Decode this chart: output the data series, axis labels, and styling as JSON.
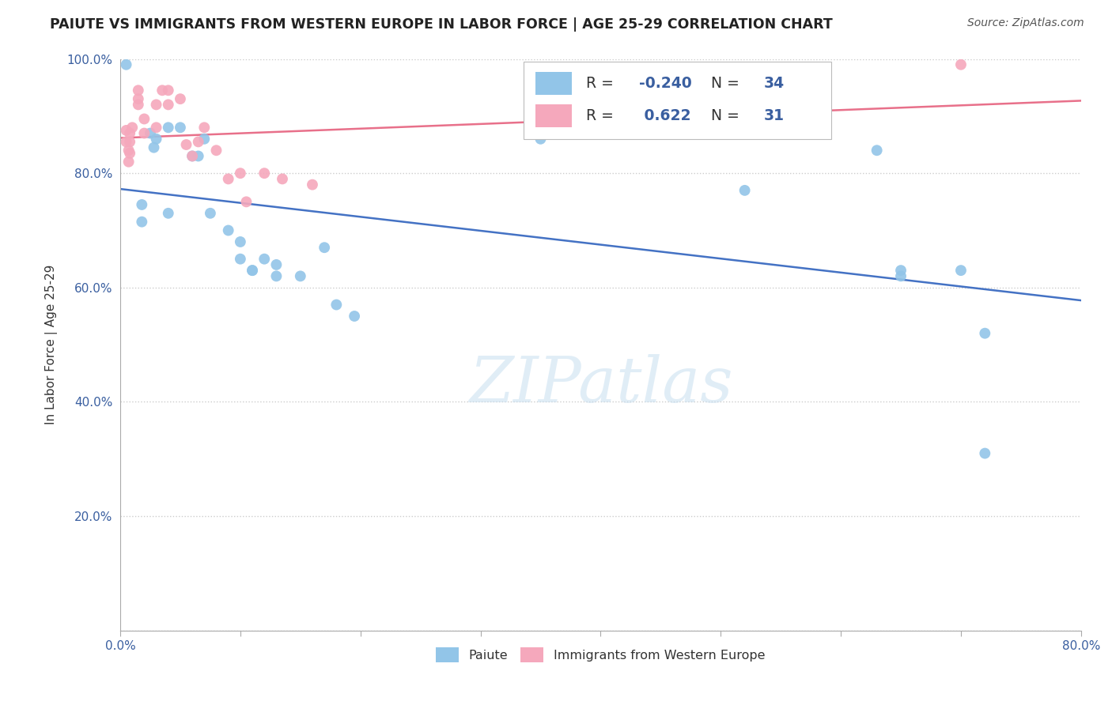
{
  "title": "PAIUTE VS IMMIGRANTS FROM WESTERN EUROPE IN LABOR FORCE | AGE 25-29 CORRELATION CHART",
  "source": "Source: ZipAtlas.com",
  "ylabel": "In Labor Force | Age 25-29",
  "xlim": [
    0.0,
    0.8
  ],
  "ylim": [
    0.0,
    1.0
  ],
  "xticks": [
    0.0,
    0.1,
    0.2,
    0.3,
    0.4,
    0.5,
    0.6,
    0.7,
    0.8
  ],
  "yticks": [
    0.0,
    0.2,
    0.4,
    0.6,
    0.8,
    1.0
  ],
  "xtick_labels_show": [
    "0.0%",
    "",
    "",
    "",
    "",
    "",
    "",
    "",
    "80.0%"
  ],
  "ytick_labels": [
    "",
    "20.0%",
    "40.0%",
    "60.0%",
    "80.0%",
    "100.0%"
  ],
  "blue_color": "#92C5E8",
  "pink_color": "#F5A8BC",
  "blue_line_color": "#4472C4",
  "pink_line_color": "#E8708A",
  "R_blue": -0.24,
  "N_blue": 34,
  "R_pink": 0.622,
  "N_pink": 31,
  "legend_label_blue": "Paiute",
  "legend_label_pink": "Immigrants from Western Europe",
  "watermark": "ZIPatlas",
  "blue_scatter": [
    [
      0.005,
      0.99
    ],
    [
      0.018,
      0.745
    ],
    [
      0.018,
      0.715
    ],
    [
      0.025,
      0.87
    ],
    [
      0.028,
      0.845
    ],
    [
      0.03,
      0.86
    ],
    [
      0.04,
      0.73
    ],
    [
      0.04,
      0.88
    ],
    [
      0.05,
      0.88
    ],
    [
      0.06,
      0.83
    ],
    [
      0.065,
      0.83
    ],
    [
      0.07,
      0.86
    ],
    [
      0.075,
      0.73
    ],
    [
      0.09,
      0.7
    ],
    [
      0.1,
      0.68
    ],
    [
      0.1,
      0.65
    ],
    [
      0.11,
      0.63
    ],
    [
      0.11,
      0.63
    ],
    [
      0.12,
      0.65
    ],
    [
      0.13,
      0.64
    ],
    [
      0.13,
      0.62
    ],
    [
      0.15,
      0.62
    ],
    [
      0.17,
      0.67
    ],
    [
      0.18,
      0.57
    ],
    [
      0.195,
      0.55
    ],
    [
      0.35,
      0.86
    ],
    [
      0.5,
      0.87
    ],
    [
      0.52,
      0.77
    ],
    [
      0.63,
      0.84
    ],
    [
      0.65,
      0.63
    ],
    [
      0.65,
      0.62
    ],
    [
      0.7,
      0.63
    ],
    [
      0.72,
      0.52
    ],
    [
      0.72,
      0.31
    ]
  ],
  "pink_scatter": [
    [
      0.005,
      0.875
    ],
    [
      0.005,
      0.855
    ],
    [
      0.007,
      0.84
    ],
    [
      0.007,
      0.82
    ],
    [
      0.008,
      0.835
    ],
    [
      0.008,
      0.855
    ],
    [
      0.008,
      0.87
    ],
    [
      0.01,
      0.88
    ],
    [
      0.015,
      0.93
    ],
    [
      0.015,
      0.945
    ],
    [
      0.015,
      0.92
    ],
    [
      0.02,
      0.895
    ],
    [
      0.02,
      0.87
    ],
    [
      0.03,
      0.92
    ],
    [
      0.03,
      0.88
    ],
    [
      0.035,
      0.945
    ],
    [
      0.04,
      0.945
    ],
    [
      0.04,
      0.92
    ],
    [
      0.05,
      0.93
    ],
    [
      0.055,
      0.85
    ],
    [
      0.06,
      0.83
    ],
    [
      0.065,
      0.855
    ],
    [
      0.07,
      0.88
    ],
    [
      0.08,
      0.84
    ],
    [
      0.09,
      0.79
    ],
    [
      0.1,
      0.8
    ],
    [
      0.105,
      0.75
    ],
    [
      0.12,
      0.8
    ],
    [
      0.135,
      0.79
    ],
    [
      0.16,
      0.78
    ],
    [
      0.7,
      0.99
    ]
  ]
}
